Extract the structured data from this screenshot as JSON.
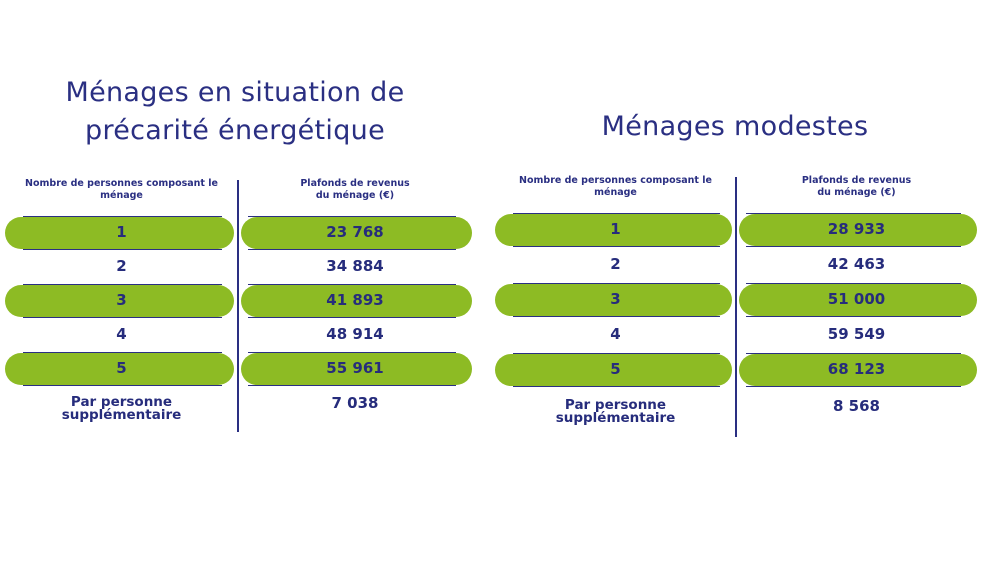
{
  "tables": [
    {
      "title": "Ménages en situation de\nprécarité énergétique",
      "col1_header": "Nombre de personnes composant le ménage",
      "col2_header": "Plafonds de revenus\ndu ménage (€)",
      "rows": [
        {
          "persons": "1",
          "ceiling": "23 768"
        },
        {
          "persons": "2",
          "ceiling": "34 884"
        },
        {
          "persons": "3",
          "ceiling": "41 893"
        },
        {
          "persons": "4",
          "ceiling": "48 914"
        },
        {
          "persons": "5",
          "ceiling": "55 961"
        }
      ],
      "extra_label": "Par personne\nsupplémentaire",
      "extra_value": "7 038"
    },
    {
      "title": "Ménages modestes",
      "col1_header": "Nombre de personnes composant le ménage",
      "col2_header": "Plafonds de revenus\ndu ménage (€)",
      "rows": [
        {
          "persons": "1",
          "ceiling": "28 933"
        },
        {
          "persons": "2",
          "ceiling": "42 463"
        },
        {
          "persons": "3",
          "ceiling": "51 000"
        },
        {
          "persons": "4",
          "ceiling": "59 549"
        },
        {
          "persons": "5",
          "ceiling": "68 123"
        }
      ],
      "extra_label": "Par personne\nsupplémentaire",
      "extra_value": "8 568"
    }
  ],
  "colors": {
    "text": "#262c7c",
    "highlight": "#8dbb24"
  }
}
